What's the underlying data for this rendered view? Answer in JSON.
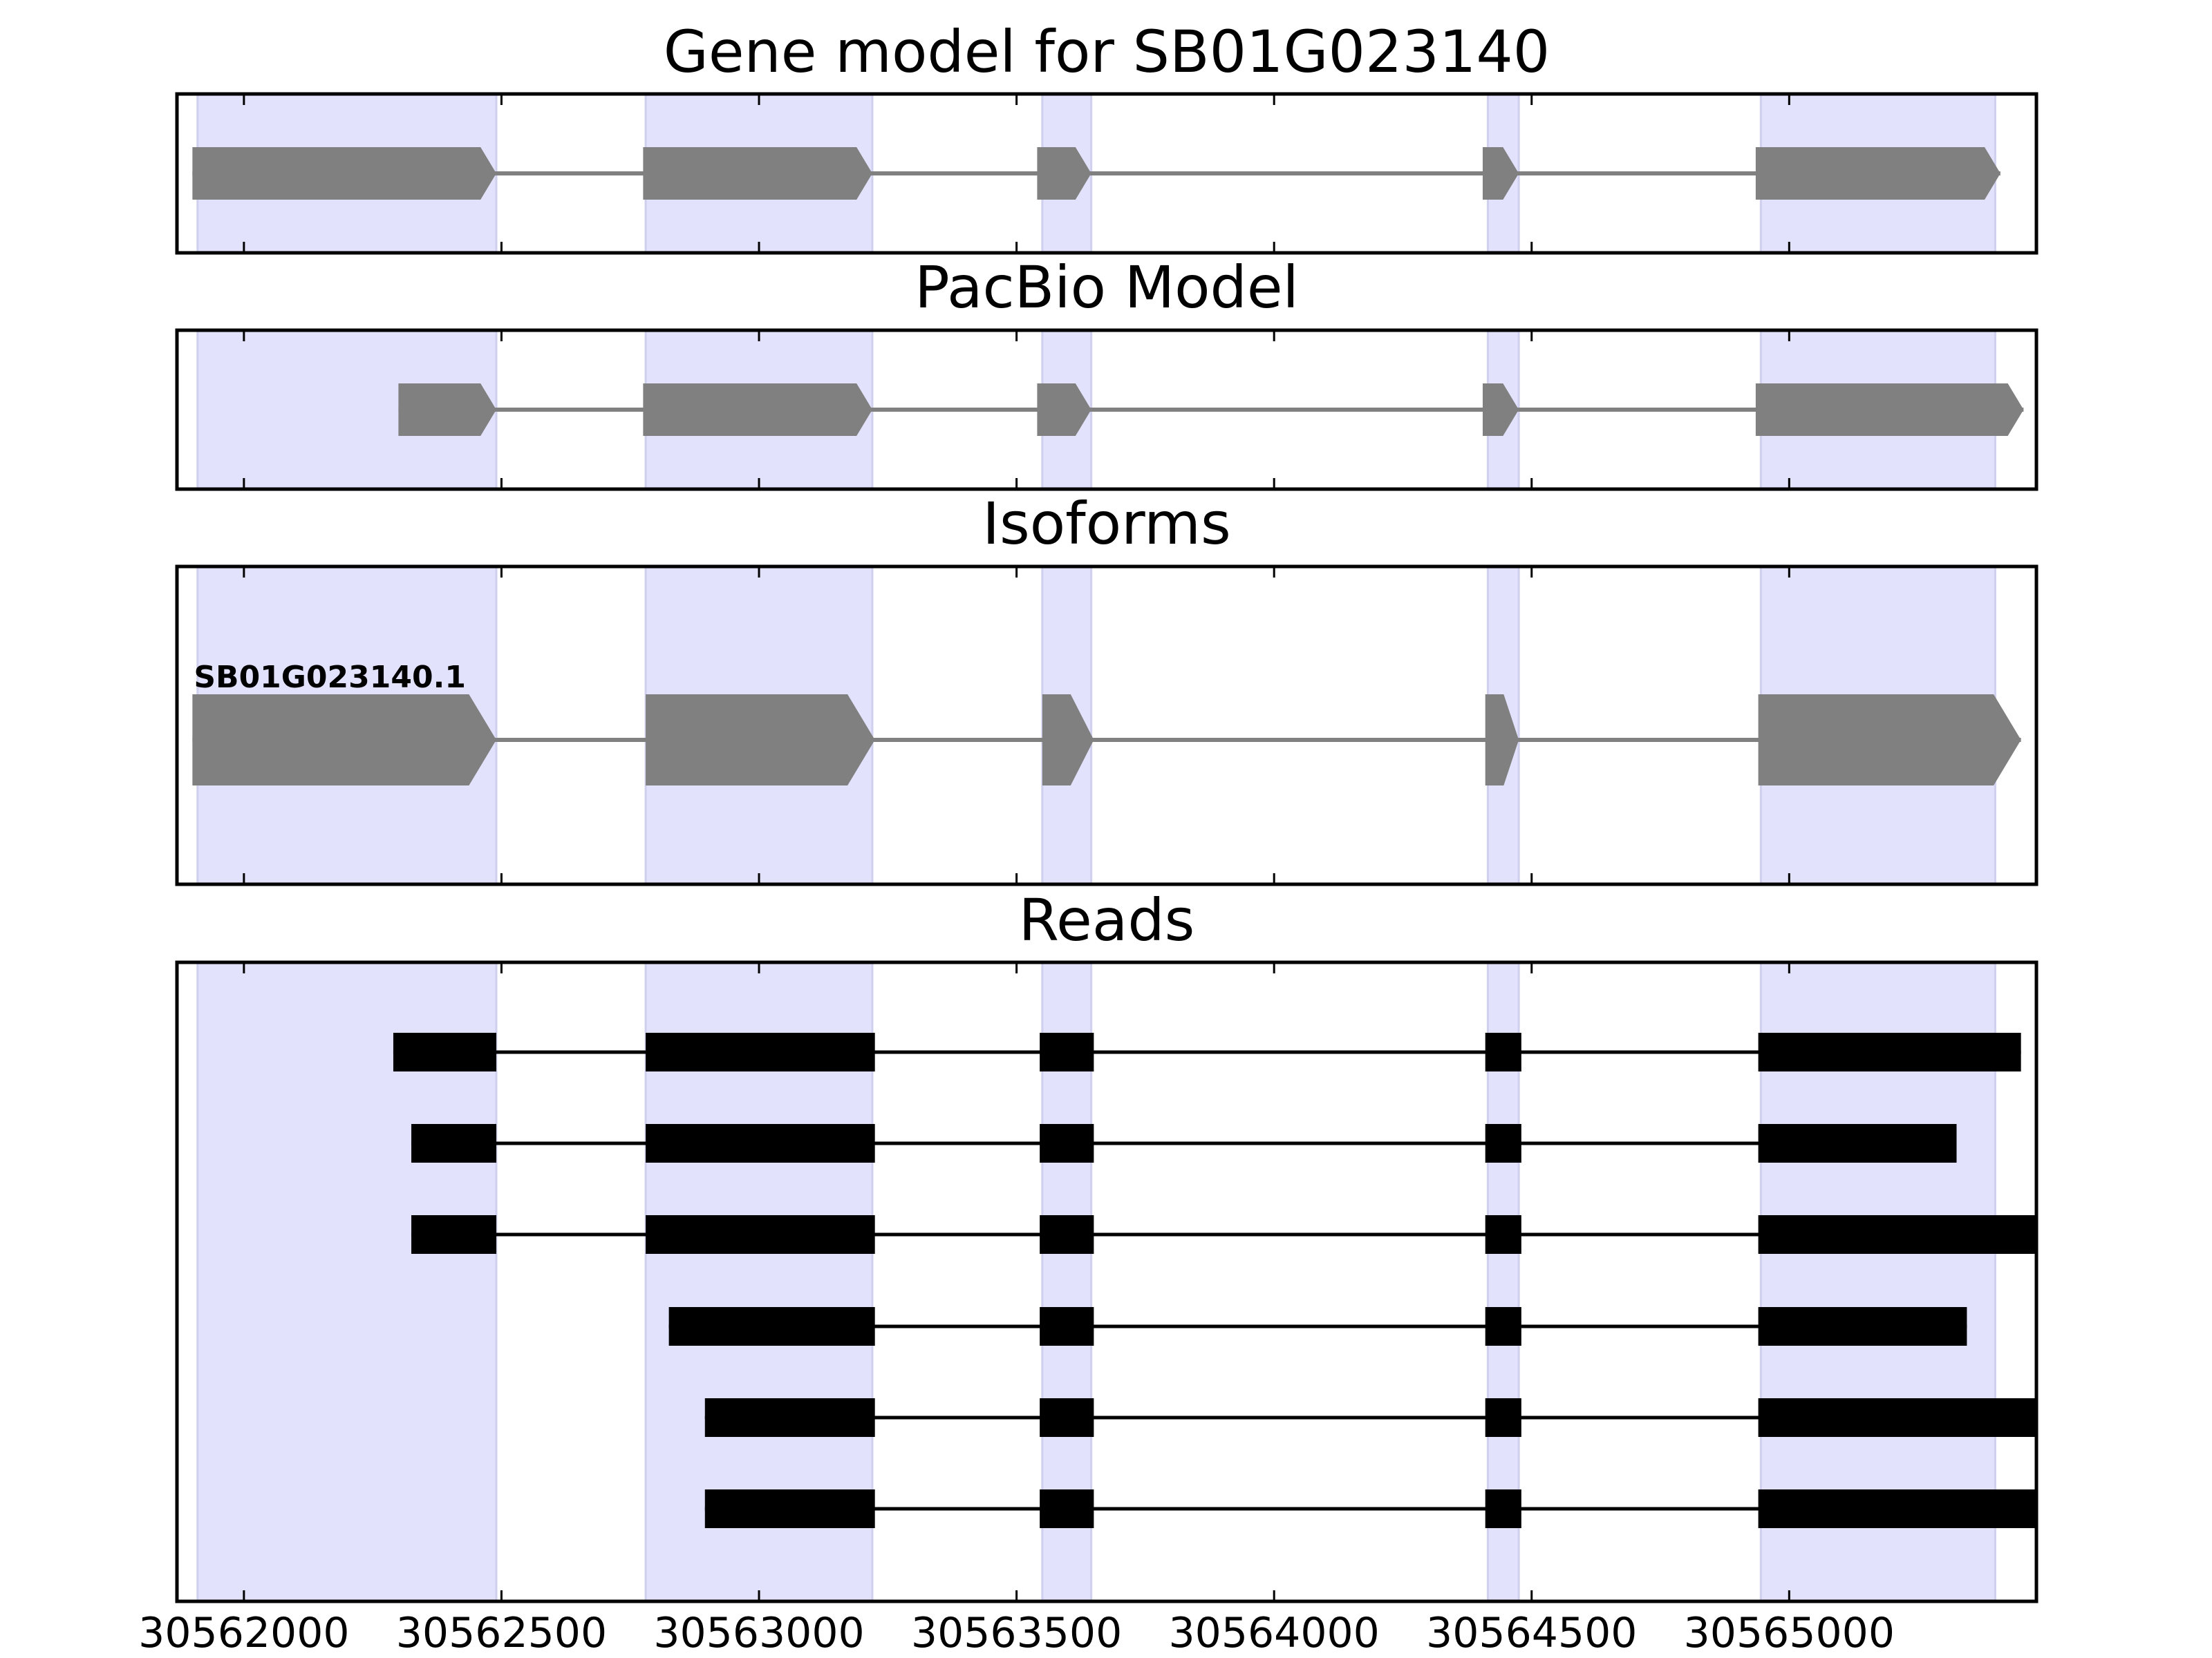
{
  "chart_data": {
    "type": "gene-model-track",
    "xlim": [
      30561870,
      30565480
    ],
    "x_ticks": [
      30562000,
      30562500,
      30563000,
      30563500,
      30564000,
      30564500,
      30565000
    ],
    "tick_labels": [
      "30562000",
      "30562500",
      "30563000",
      "30563500",
      "30564000",
      "30564500",
      "30565000"
    ],
    "exon_shading": [
      [
        30561910,
        30562490
      ],
      [
        30562780,
        30563220
      ],
      [
        30563550,
        30563645
      ],
      [
        30564415,
        30564475
      ],
      [
        30564945,
        30565400
      ]
    ],
    "colors": {
      "shade": "#e2e2fc",
      "model": "#808080",
      "read": "#000000",
      "frame": "#000000"
    },
    "panels": [
      {
        "title": "Gene model for SB01G023140",
        "tracks": [
          {
            "label": "",
            "exons": [
              [
                30561900,
                30562490
              ],
              [
                30562775,
                30563220
              ],
              [
                30563540,
                30563645
              ],
              [
                30564405,
                30564475
              ],
              [
                30564935,
                30565410
              ]
            ]
          }
        ]
      },
      {
        "title": "PacBio Model",
        "tracks": [
          {
            "label": "",
            "exons": [
              [
                30562300,
                30562490
              ],
              [
                30562775,
                30563220
              ],
              [
                30563540,
                30563645
              ],
              [
                30564405,
                30564475
              ],
              [
                30564935,
                30565455
              ]
            ]
          }
        ]
      },
      {
        "title": "Isoforms",
        "tracks": [
          {
            "label": "SB01G023140.1",
            "exons": [
              [
                30561900,
                30562490
              ],
              [
                30562780,
                30563225
              ],
              [
                30563550,
                30563650
              ],
              [
                30564410,
                30564475
              ],
              [
                30564940,
                30565450
              ]
            ]
          }
        ]
      },
      {
        "title": "Reads",
        "tracks": [
          {
            "exons": [
              [
                30562290,
                30562490
              ],
              [
                30562780,
                30563225
              ],
              [
                30563545,
                30563650
              ],
              [
                30564410,
                30564480
              ],
              [
                30564940,
                30565450
              ]
            ]
          },
          {
            "exons": [
              [
                30562325,
                30562490
              ],
              [
                30562780,
                30563225
              ],
              [
                30563545,
                30563650
              ],
              [
                30564410,
                30564480
              ],
              [
                30564940,
                30565325
              ]
            ]
          },
          {
            "exons": [
              [
                30562325,
                30562490
              ],
              [
                30562780,
                30563225
              ],
              [
                30563545,
                30563650
              ],
              [
                30564410,
                30564480
              ],
              [
                30564940,
                30565480
              ]
            ]
          },
          {
            "exons": [
              [
                30562825,
                30563225
              ],
              [
                30563545,
                30563650
              ],
              [
                30564410,
                30564480
              ],
              [
                30564940,
                30565345
              ]
            ]
          },
          {
            "exons": [
              [
                30562895,
                30563225
              ],
              [
                30563545,
                30563650
              ],
              [
                30564410,
                30564480
              ],
              [
                30564940,
                30565480
              ]
            ]
          },
          {
            "exons": [
              [
                30562895,
                30563225
              ],
              [
                30563545,
                30563650
              ],
              [
                30564410,
                30564480
              ],
              [
                30564940,
                30565480
              ]
            ]
          }
        ]
      }
    ]
  }
}
